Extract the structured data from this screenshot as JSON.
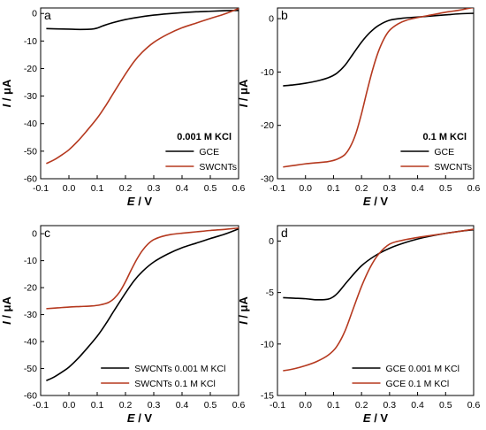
{
  "figure": {
    "panels": [
      "a",
      "b",
      "c",
      "d"
    ]
  },
  "chart_data": [
    {
      "panel": "a",
      "type": "line",
      "xlabel": "E",
      "xunit": "/ V",
      "ylabel": "I",
      "yunit": "/ μA",
      "xlim": [
        -0.1,
        0.6
      ],
      "ylim": [
        -60,
        2
      ],
      "xticks": [
        "-0.1",
        "0.0",
        "0.1",
        "0.2",
        "0.3",
        "0.4",
        "0.5",
        "0.6"
      ],
      "yticks": [
        "0",
        "-10",
        "-20",
        "-30",
        "-40",
        "-50",
        "-60"
      ],
      "legend_title": "0.001 M KCl",
      "legend_position": "lower-right",
      "grid": false,
      "series": [
        {
          "name": "GCE",
          "color": "#000000",
          "x": [
            -0.08,
            -0.04,
            0.0,
            0.04,
            0.08,
            0.1,
            0.12,
            0.15,
            0.2,
            0.25,
            0.3,
            0.35,
            0.4,
            0.45,
            0.5,
            0.55,
            0.6
          ],
          "y": [
            -5.5,
            -5.6,
            -5.7,
            -5.8,
            -5.7,
            -5.3,
            -4.5,
            -3.5,
            -2.2,
            -1.3,
            -0.6,
            -0.1,
            0.3,
            0.6,
            0.8,
            1.0,
            1.1
          ]
        },
        {
          "name": "SWCNTs",
          "color": "#b5391f",
          "x": [
            -0.08,
            -0.05,
            -0.02,
            0.0,
            0.03,
            0.06,
            0.1,
            0.13,
            0.16,
            0.2,
            0.23,
            0.26,
            0.3,
            0.35,
            0.4,
            0.45,
            0.5,
            0.55,
            0.6
          ],
          "y": [
            -54.5,
            -53,
            -51,
            -49.5,
            -46.5,
            -43,
            -38,
            -33.5,
            -28.5,
            -22,
            -17.5,
            -14,
            -10.5,
            -7.5,
            -5.2,
            -3.5,
            -1.8,
            -0.2,
            1.8
          ]
        }
      ]
    },
    {
      "panel": "b",
      "type": "line",
      "xlabel": "E",
      "xunit": "/ V",
      "ylabel": "I",
      "yunit": "/ μA",
      "xlim": [
        -0.1,
        0.6
      ],
      "ylim": [
        -30,
        2
      ],
      "xticks": [
        "-0.1",
        "0.0",
        "0.1",
        "0.2",
        "0.3",
        "0.4",
        "0.5",
        "0.6"
      ],
      "yticks": [
        "0",
        "-10",
        "-20",
        "-30"
      ],
      "legend_title": "0.1 M KCl",
      "legend_position": "lower-right",
      "grid": false,
      "series": [
        {
          "name": "GCE",
          "color": "#000000",
          "x": [
            -0.08,
            -0.04,
            0.0,
            0.04,
            0.08,
            0.11,
            0.14,
            0.17,
            0.2,
            0.23,
            0.26,
            0.3,
            0.35,
            0.4,
            0.45,
            0.5,
            0.55,
            0.6
          ],
          "y": [
            -12.6,
            -12.4,
            -12.1,
            -11.7,
            -11.1,
            -10.3,
            -8.8,
            -6.6,
            -4.4,
            -2.6,
            -1.3,
            -0.3,
            0.1,
            0.3,
            0.5,
            0.7,
            0.9,
            1.0
          ]
        },
        {
          "name": "SWCNTs",
          "color": "#b5391f",
          "x": [
            -0.08,
            -0.04,
            0.0,
            0.04,
            0.08,
            0.11,
            0.14,
            0.16,
            0.18,
            0.2,
            0.22,
            0.24,
            0.26,
            0.28,
            0.3,
            0.33,
            0.36,
            0.4,
            0.45,
            0.5,
            0.55,
            0.6
          ],
          "y": [
            -27.8,
            -27.5,
            -27.2,
            -27.0,
            -26.8,
            -26.4,
            -25.5,
            -24.0,
            -21.5,
            -17.8,
            -13.5,
            -9.5,
            -6.2,
            -3.8,
            -2.2,
            -1.0,
            -0.3,
            0.2,
            0.7,
            1.2,
            1.6,
            2.1
          ]
        }
      ]
    },
    {
      "panel": "c",
      "type": "line",
      "xlabel": "E",
      "xunit": "/ V",
      "ylabel": "I",
      "yunit": "/ μA",
      "xlim": [
        -0.1,
        0.6
      ],
      "ylim": [
        -60,
        3
      ],
      "xticks": [
        "-0.1",
        "0.0",
        "0.1",
        "0.2",
        "0.3",
        "0.4",
        "0.5",
        "0.6"
      ],
      "yticks": [
        "0",
        "-10",
        "-20",
        "-30",
        "-40",
        "-50",
        "-60"
      ],
      "legend_position": "lower-right",
      "grid": false,
      "series": [
        {
          "name": "SWCNTs 0.001 M KCl",
          "color": "#000000",
          "x": [
            -0.08,
            -0.05,
            -0.02,
            0.0,
            0.03,
            0.06,
            0.1,
            0.13,
            0.16,
            0.2,
            0.23,
            0.26,
            0.3,
            0.35,
            0.4,
            0.45,
            0.5,
            0.55,
            0.6
          ],
          "y": [
            -54.5,
            -53,
            -51,
            -49.5,
            -46.5,
            -43,
            -38,
            -33.5,
            -28.5,
            -22,
            -17.5,
            -14,
            -10.5,
            -7.5,
            -5.2,
            -3.5,
            -1.8,
            -0.2,
            1.8
          ]
        },
        {
          "name": "SWCNTs 0.1 M KCl",
          "color": "#b5391f",
          "x": [
            -0.08,
            -0.04,
            0.0,
            0.04,
            0.08,
            0.11,
            0.14,
            0.16,
            0.18,
            0.2,
            0.22,
            0.24,
            0.26,
            0.28,
            0.3,
            0.33,
            0.36,
            0.4,
            0.45,
            0.5,
            0.55,
            0.6
          ],
          "y": [
            -27.8,
            -27.5,
            -27.2,
            -27.0,
            -26.8,
            -26.4,
            -25.5,
            -24.0,
            -21.5,
            -17.8,
            -13.5,
            -9.5,
            -6.2,
            -3.8,
            -2.2,
            -1.0,
            -0.3,
            0.2,
            0.7,
            1.2,
            1.6,
            2.1
          ]
        }
      ]
    },
    {
      "panel": "d",
      "type": "line",
      "xlabel": "E",
      "xunit": "/ V",
      "ylabel": "I",
      "yunit": "/ μA",
      "xlim": [
        -0.1,
        0.6
      ],
      "ylim": [
        -15,
        1.5
      ],
      "xticks": [
        "-0.1",
        "0.0",
        "0.1",
        "0.2",
        "0.3",
        "0.4",
        "0.5",
        "0.6"
      ],
      "yticks": [
        "0",
        "-5",
        "-10",
        "-15"
      ],
      "legend_position": "lower-right",
      "grid": false,
      "series": [
        {
          "name": "GCE 0.001 M KCl",
          "color": "#000000",
          "x": [
            -0.08,
            -0.04,
            0.0,
            0.04,
            0.08,
            0.1,
            0.12,
            0.15,
            0.2,
            0.25,
            0.3,
            0.35,
            0.4,
            0.45,
            0.5,
            0.55,
            0.6
          ],
          "y": [
            -5.5,
            -5.55,
            -5.6,
            -5.7,
            -5.65,
            -5.4,
            -4.9,
            -3.9,
            -2.4,
            -1.4,
            -0.7,
            -0.2,
            0.2,
            0.5,
            0.75,
            0.95,
            1.1
          ]
        },
        {
          "name": "GCE 0.1 M KCl",
          "color": "#b5391f",
          "x": [
            -0.08,
            -0.04,
            0.0,
            0.04,
            0.08,
            0.11,
            0.14,
            0.17,
            0.2,
            0.23,
            0.26,
            0.3,
            0.35,
            0.4,
            0.45,
            0.5,
            0.55,
            0.6
          ],
          "y": [
            -12.6,
            -12.4,
            -12.1,
            -11.7,
            -11.1,
            -10.3,
            -8.8,
            -6.6,
            -4.4,
            -2.6,
            -1.3,
            -0.3,
            0.1,
            0.35,
            0.55,
            0.75,
            0.95,
            1.15
          ]
        }
      ]
    }
  ]
}
